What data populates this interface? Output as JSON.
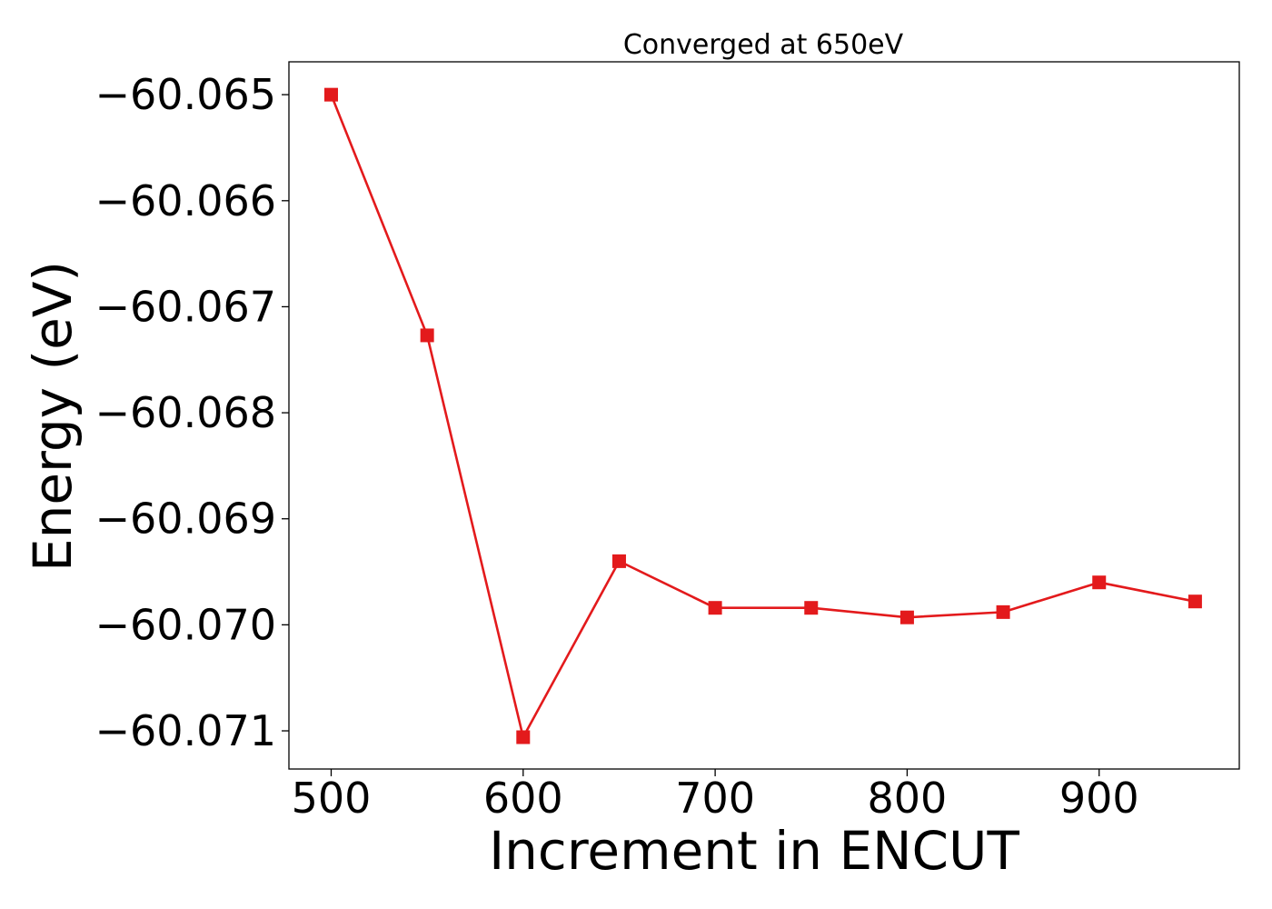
{
  "chart_data": {
    "type": "line",
    "title": "Converged at 650eV",
    "xlabel": "Increment in ENCUT",
    "ylabel": "Energy (eV)",
    "x": [
      500,
      550,
      600,
      650,
      700,
      750,
      800,
      850,
      900,
      950
    ],
    "series": [
      {
        "values": [
          -60.065,
          -60.06727,
          -60.07106,
          -60.0694,
          -60.06984,
          -60.06984,
          -60.06993,
          -60.06988,
          -60.0696,
          -60.06978
        ],
        "color": "#e31a1c",
        "marker": "square"
      }
    ],
    "xticks": [
      500,
      600,
      700,
      800,
      900
    ],
    "xtick_labels": [
      "500",
      "600",
      "700",
      "800",
      "900"
    ],
    "yticks": [
      -60.065,
      -60.066,
      -60.067,
      -60.068,
      -60.069,
      -60.07,
      -60.071
    ],
    "ytick_labels": [
      "−60.065",
      "−60.066",
      "−60.067",
      "−60.068",
      "−60.069",
      "−60.070",
      "−60.071"
    ],
    "xlim": [
      478,
      973
    ],
    "ylim": [
      -60.07136,
      -60.06469
    ],
    "grid": false,
    "legend": false
  }
}
